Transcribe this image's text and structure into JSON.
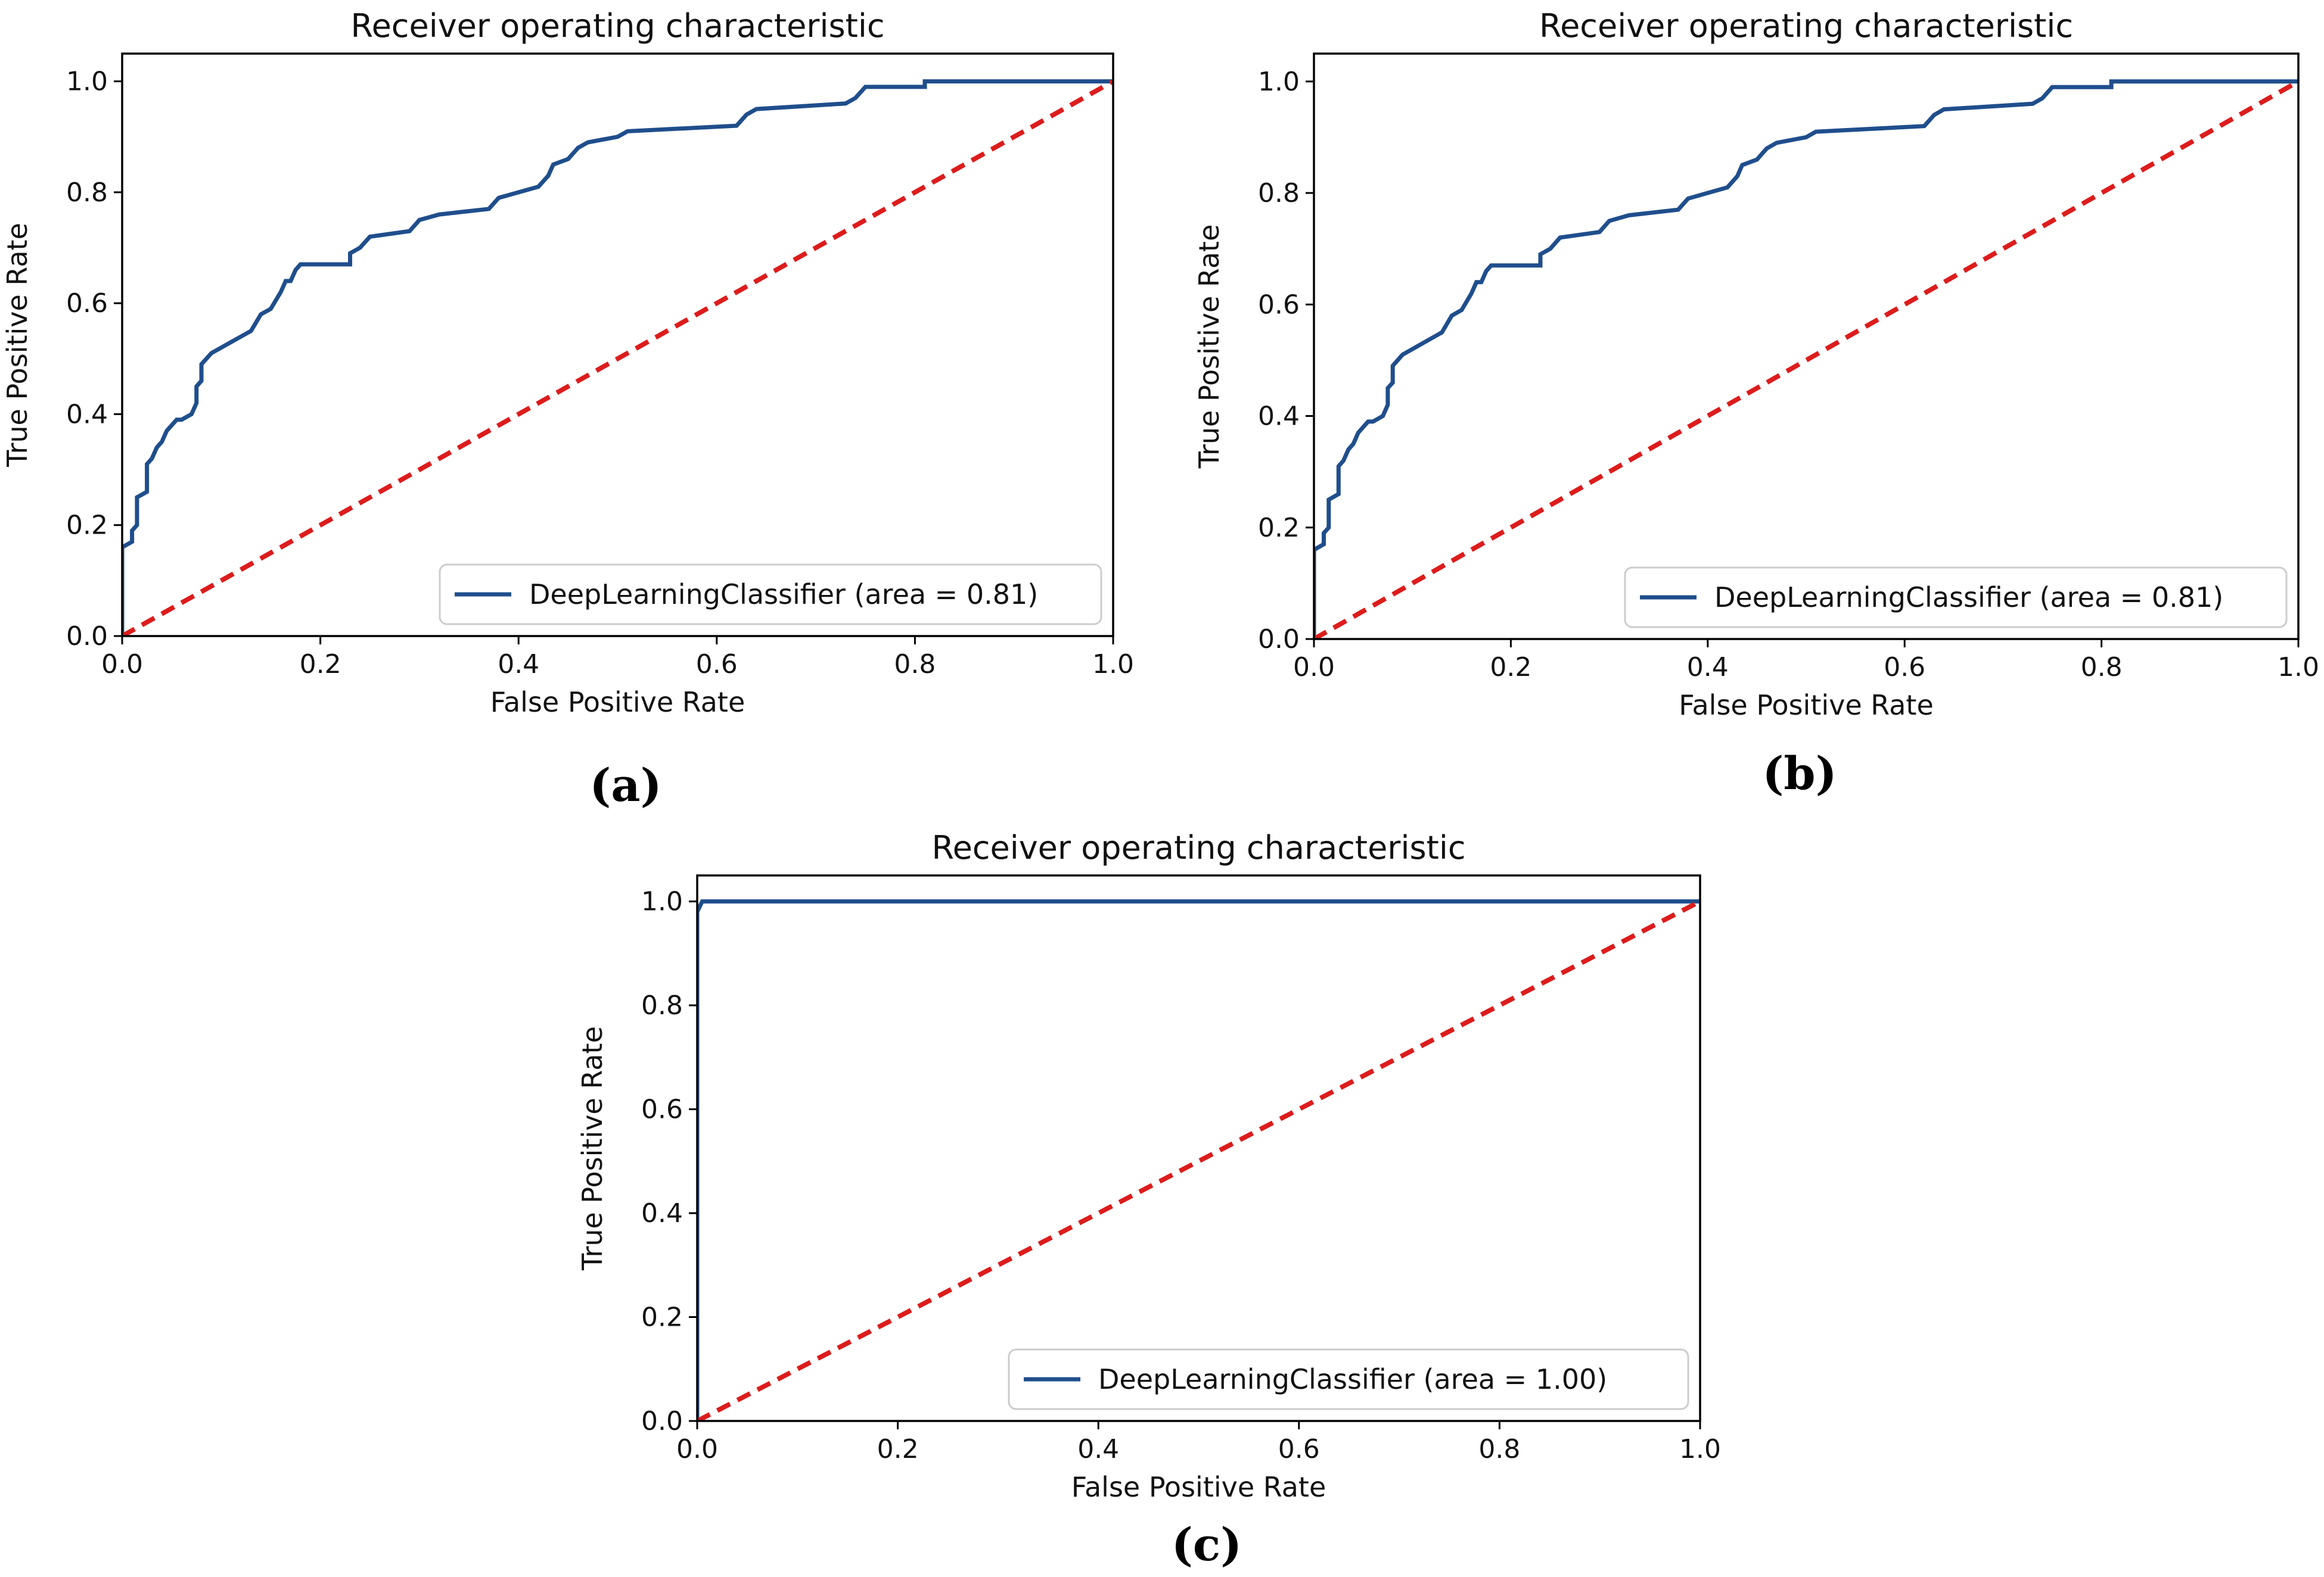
{
  "figure": {
    "colors": {
      "roc_line": "#1f4e8c",
      "chance_line": "#dd1c1c",
      "axes": "#000000",
      "legend_border": "#cccccc"
    }
  },
  "chart_data": [
    {
      "type": "line",
      "panel_label": "(a)",
      "title": "Receiver operating characteristic",
      "xlabel": "False Positive Rate",
      "ylabel": "True Positive Rate",
      "xlim": [
        0,
        1
      ],
      "ylim": [
        0,
        1.05
      ],
      "xticks": [
        "0.0",
        "0.2",
        "0.4",
        "0.6",
        "0.8",
        "1.0"
      ],
      "yticks": [
        "0.0",
        "0.2",
        "0.4",
        "0.6",
        "0.8",
        "1.0"
      ],
      "grid": false,
      "legend_position": "lower-right",
      "series": [
        {
          "name": "DeepLearningClassifier (area = 0.81)",
          "style": "solid",
          "x": [
            0,
            0,
            0.01,
            0.01,
            0.015,
            0.015,
            0.025,
            0.025,
            0.03,
            0.035,
            0.04,
            0.045,
            0.05,
            0.055,
            0.06,
            0.07,
            0.075,
            0.075,
            0.08,
            0.08,
            0.085,
            0.085,
            0.09,
            0.1,
            0.11,
            0.12,
            0.13,
            0.14,
            0.15,
            0.16,
            0.165,
            0.17,
            0.175,
            0.18,
            0.19,
            0.23,
            0.23,
            0.24,
            0.25,
            0.29,
            0.3,
            0.32,
            0.37,
            0.38,
            0.4,
            0.42,
            0.43,
            0.435,
            0.45,
            0.46,
            0.47,
            0.5,
            0.51,
            0.62,
            0.63,
            0.64,
            0.73,
            0.74,
            0.75,
            0.81,
            0.81,
            1
          ],
          "y": [
            0,
            0.16,
            0.17,
            0.19,
            0.2,
            0.25,
            0.26,
            0.31,
            0.32,
            0.34,
            0.35,
            0.37,
            0.38,
            0.39,
            0.39,
            0.4,
            0.42,
            0.45,
            0.46,
            0.49,
            0.5,
            0.5,
            0.51,
            0.52,
            0.53,
            0.54,
            0.55,
            0.58,
            0.59,
            0.62,
            0.64,
            0.64,
            0.66,
            0.67,
            0.67,
            0.67,
            0.69,
            0.7,
            0.72,
            0.73,
            0.75,
            0.76,
            0.77,
            0.79,
            0.8,
            0.81,
            0.83,
            0.85,
            0.86,
            0.88,
            0.89,
            0.9,
            0.91,
            0.92,
            0.94,
            0.95,
            0.96,
            0.97,
            0.99,
            0.99,
            1.0,
            1.0
          ]
        },
        {
          "name": "chance",
          "style": "dashed",
          "x": [
            0,
            1
          ],
          "y": [
            0,
            1
          ]
        }
      ]
    },
    {
      "type": "line",
      "panel_label": "(b)",
      "title": "Receiver operating characteristic",
      "xlabel": "False Positive Rate",
      "ylabel": "True Positive Rate",
      "xlim": [
        0,
        1
      ],
      "ylim": [
        0,
        1.05
      ],
      "xticks": [
        "0.0",
        "0.2",
        "0.4",
        "0.6",
        "0.8",
        "1.0"
      ],
      "yticks": [
        "0.0",
        "0.2",
        "0.4",
        "0.6",
        "0.8",
        "1.0"
      ],
      "grid": false,
      "legend_position": "lower-right",
      "series": [
        {
          "name": "DeepLearningClassifier (area = 0.81)",
          "style": "solid",
          "x": [
            0,
            0,
            0.01,
            0.01,
            0.015,
            0.015,
            0.025,
            0.025,
            0.03,
            0.035,
            0.04,
            0.045,
            0.05,
            0.055,
            0.06,
            0.07,
            0.075,
            0.075,
            0.08,
            0.08,
            0.085,
            0.085,
            0.09,
            0.1,
            0.11,
            0.12,
            0.13,
            0.14,
            0.15,
            0.16,
            0.165,
            0.17,
            0.175,
            0.18,
            0.19,
            0.23,
            0.23,
            0.24,
            0.25,
            0.29,
            0.3,
            0.32,
            0.37,
            0.38,
            0.4,
            0.42,
            0.43,
            0.435,
            0.45,
            0.46,
            0.47,
            0.5,
            0.51,
            0.62,
            0.63,
            0.64,
            0.73,
            0.74,
            0.75,
            0.81,
            0.81,
            1
          ],
          "y": [
            0,
            0.16,
            0.17,
            0.19,
            0.2,
            0.25,
            0.26,
            0.31,
            0.32,
            0.34,
            0.35,
            0.37,
            0.38,
            0.39,
            0.39,
            0.4,
            0.42,
            0.45,
            0.46,
            0.49,
            0.5,
            0.5,
            0.51,
            0.52,
            0.53,
            0.54,
            0.55,
            0.58,
            0.59,
            0.62,
            0.64,
            0.64,
            0.66,
            0.67,
            0.67,
            0.67,
            0.69,
            0.7,
            0.72,
            0.73,
            0.75,
            0.76,
            0.77,
            0.79,
            0.8,
            0.81,
            0.83,
            0.85,
            0.86,
            0.88,
            0.89,
            0.9,
            0.91,
            0.92,
            0.94,
            0.95,
            0.96,
            0.97,
            0.99,
            0.99,
            1.0,
            1.0
          ]
        },
        {
          "name": "chance",
          "style": "dashed",
          "x": [
            0,
            1
          ],
          "y": [
            0,
            1
          ]
        }
      ]
    },
    {
      "type": "line",
      "panel_label": "(c)",
      "title": "Receiver operating characteristic",
      "xlabel": "False Positive Rate",
      "ylabel": "True Positive Rate",
      "xlim": [
        0,
        1
      ],
      "ylim": [
        0,
        1.05
      ],
      "xticks": [
        "0.0",
        "0.2",
        "0.4",
        "0.6",
        "0.8",
        "1.0"
      ],
      "yticks": [
        "0.0",
        "0.2",
        "0.4",
        "0.6",
        "0.8",
        "1.0"
      ],
      "grid": false,
      "legend_position": "lower-right",
      "series": [
        {
          "name": "DeepLearningClassifier (area = 1.00)",
          "style": "solid",
          "x": [
            0,
            0,
            0.005,
            1
          ],
          "y": [
            0,
            0.98,
            1.0,
            1.0
          ]
        },
        {
          "name": "chance",
          "style": "dashed",
          "x": [
            0,
            1
          ],
          "y": [
            0,
            1
          ]
        }
      ]
    }
  ]
}
